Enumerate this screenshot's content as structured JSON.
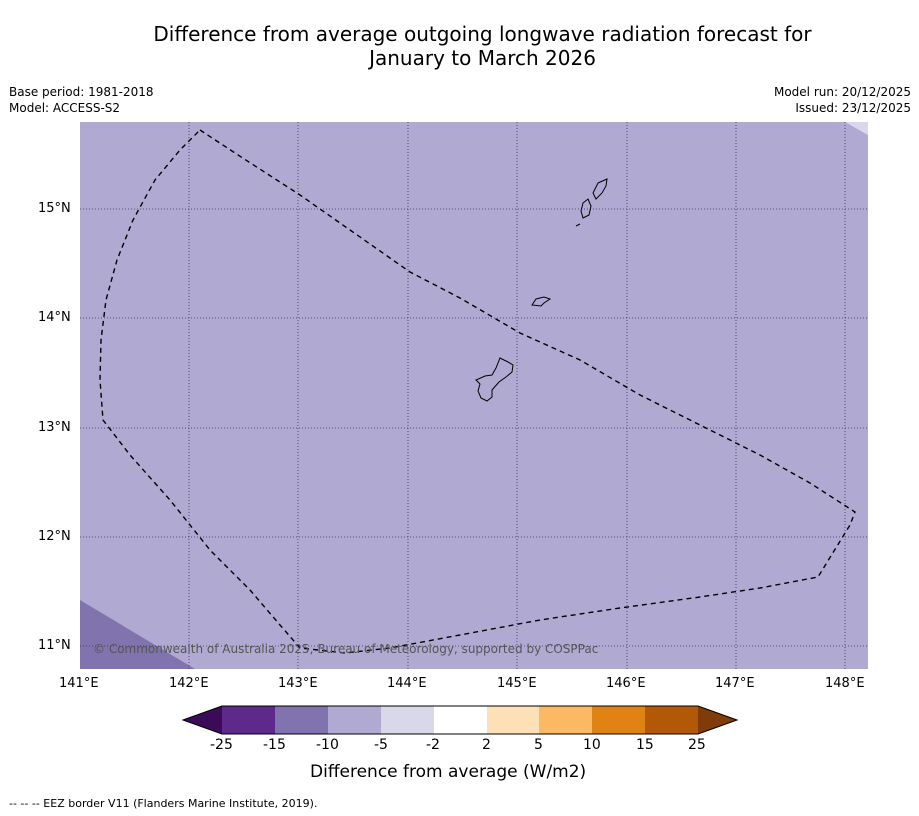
{
  "title": {
    "line1": "Difference from average outgoing longwave radiation forecast for",
    "line2": "January to March 2026"
  },
  "meta": {
    "base_period": "Base period: 1981-2018",
    "model": "Model: ACCESS-S2",
    "model_run": "Model run: 20/12/2025",
    "issued": "Issued: 23/12/2025"
  },
  "axes": {
    "lat_labels": [
      "15°N",
      "14°N",
      "13°N",
      "12°N",
      "11°N"
    ],
    "lon_labels": [
      "141°E",
      "142°E",
      "143°E",
      "144°E",
      "145°E",
      "146°E",
      "147°E",
      "148°E"
    ]
  },
  "map_fill": {
    "dominant_category": "-10 to -5",
    "dominant_color": "#b0aad2",
    "southwest_corner_category": "-15 to -10",
    "southwest_corner_color": "#8073ae",
    "northeast_corner_category": "-5 to -2",
    "northeast_corner_color": "#d9d7ea"
  },
  "colorbar": {
    "tick_labels": [
      "-25",
      "-15",
      "-10",
      "-5",
      "-2",
      "2",
      "5",
      "10",
      "15",
      "25"
    ],
    "colors": [
      "#3b0b5a",
      "#5d2a8c",
      "#8073ae",
      "#b0aad2",
      "#d9d7ea",
      "#ffffff",
      "#fde0b6",
      "#fdb863",
      "#e08214",
      "#b35806",
      "#7f3b08"
    ],
    "title": "Difference from average (W/m2)"
  },
  "copyright": "© Commonwealth of Australia 2025, Bureau of Meteorology, supported by COSPPac",
  "footnote": "--  --  -- EEZ border V11 (Flanders Marine Institute, 2019)."
}
